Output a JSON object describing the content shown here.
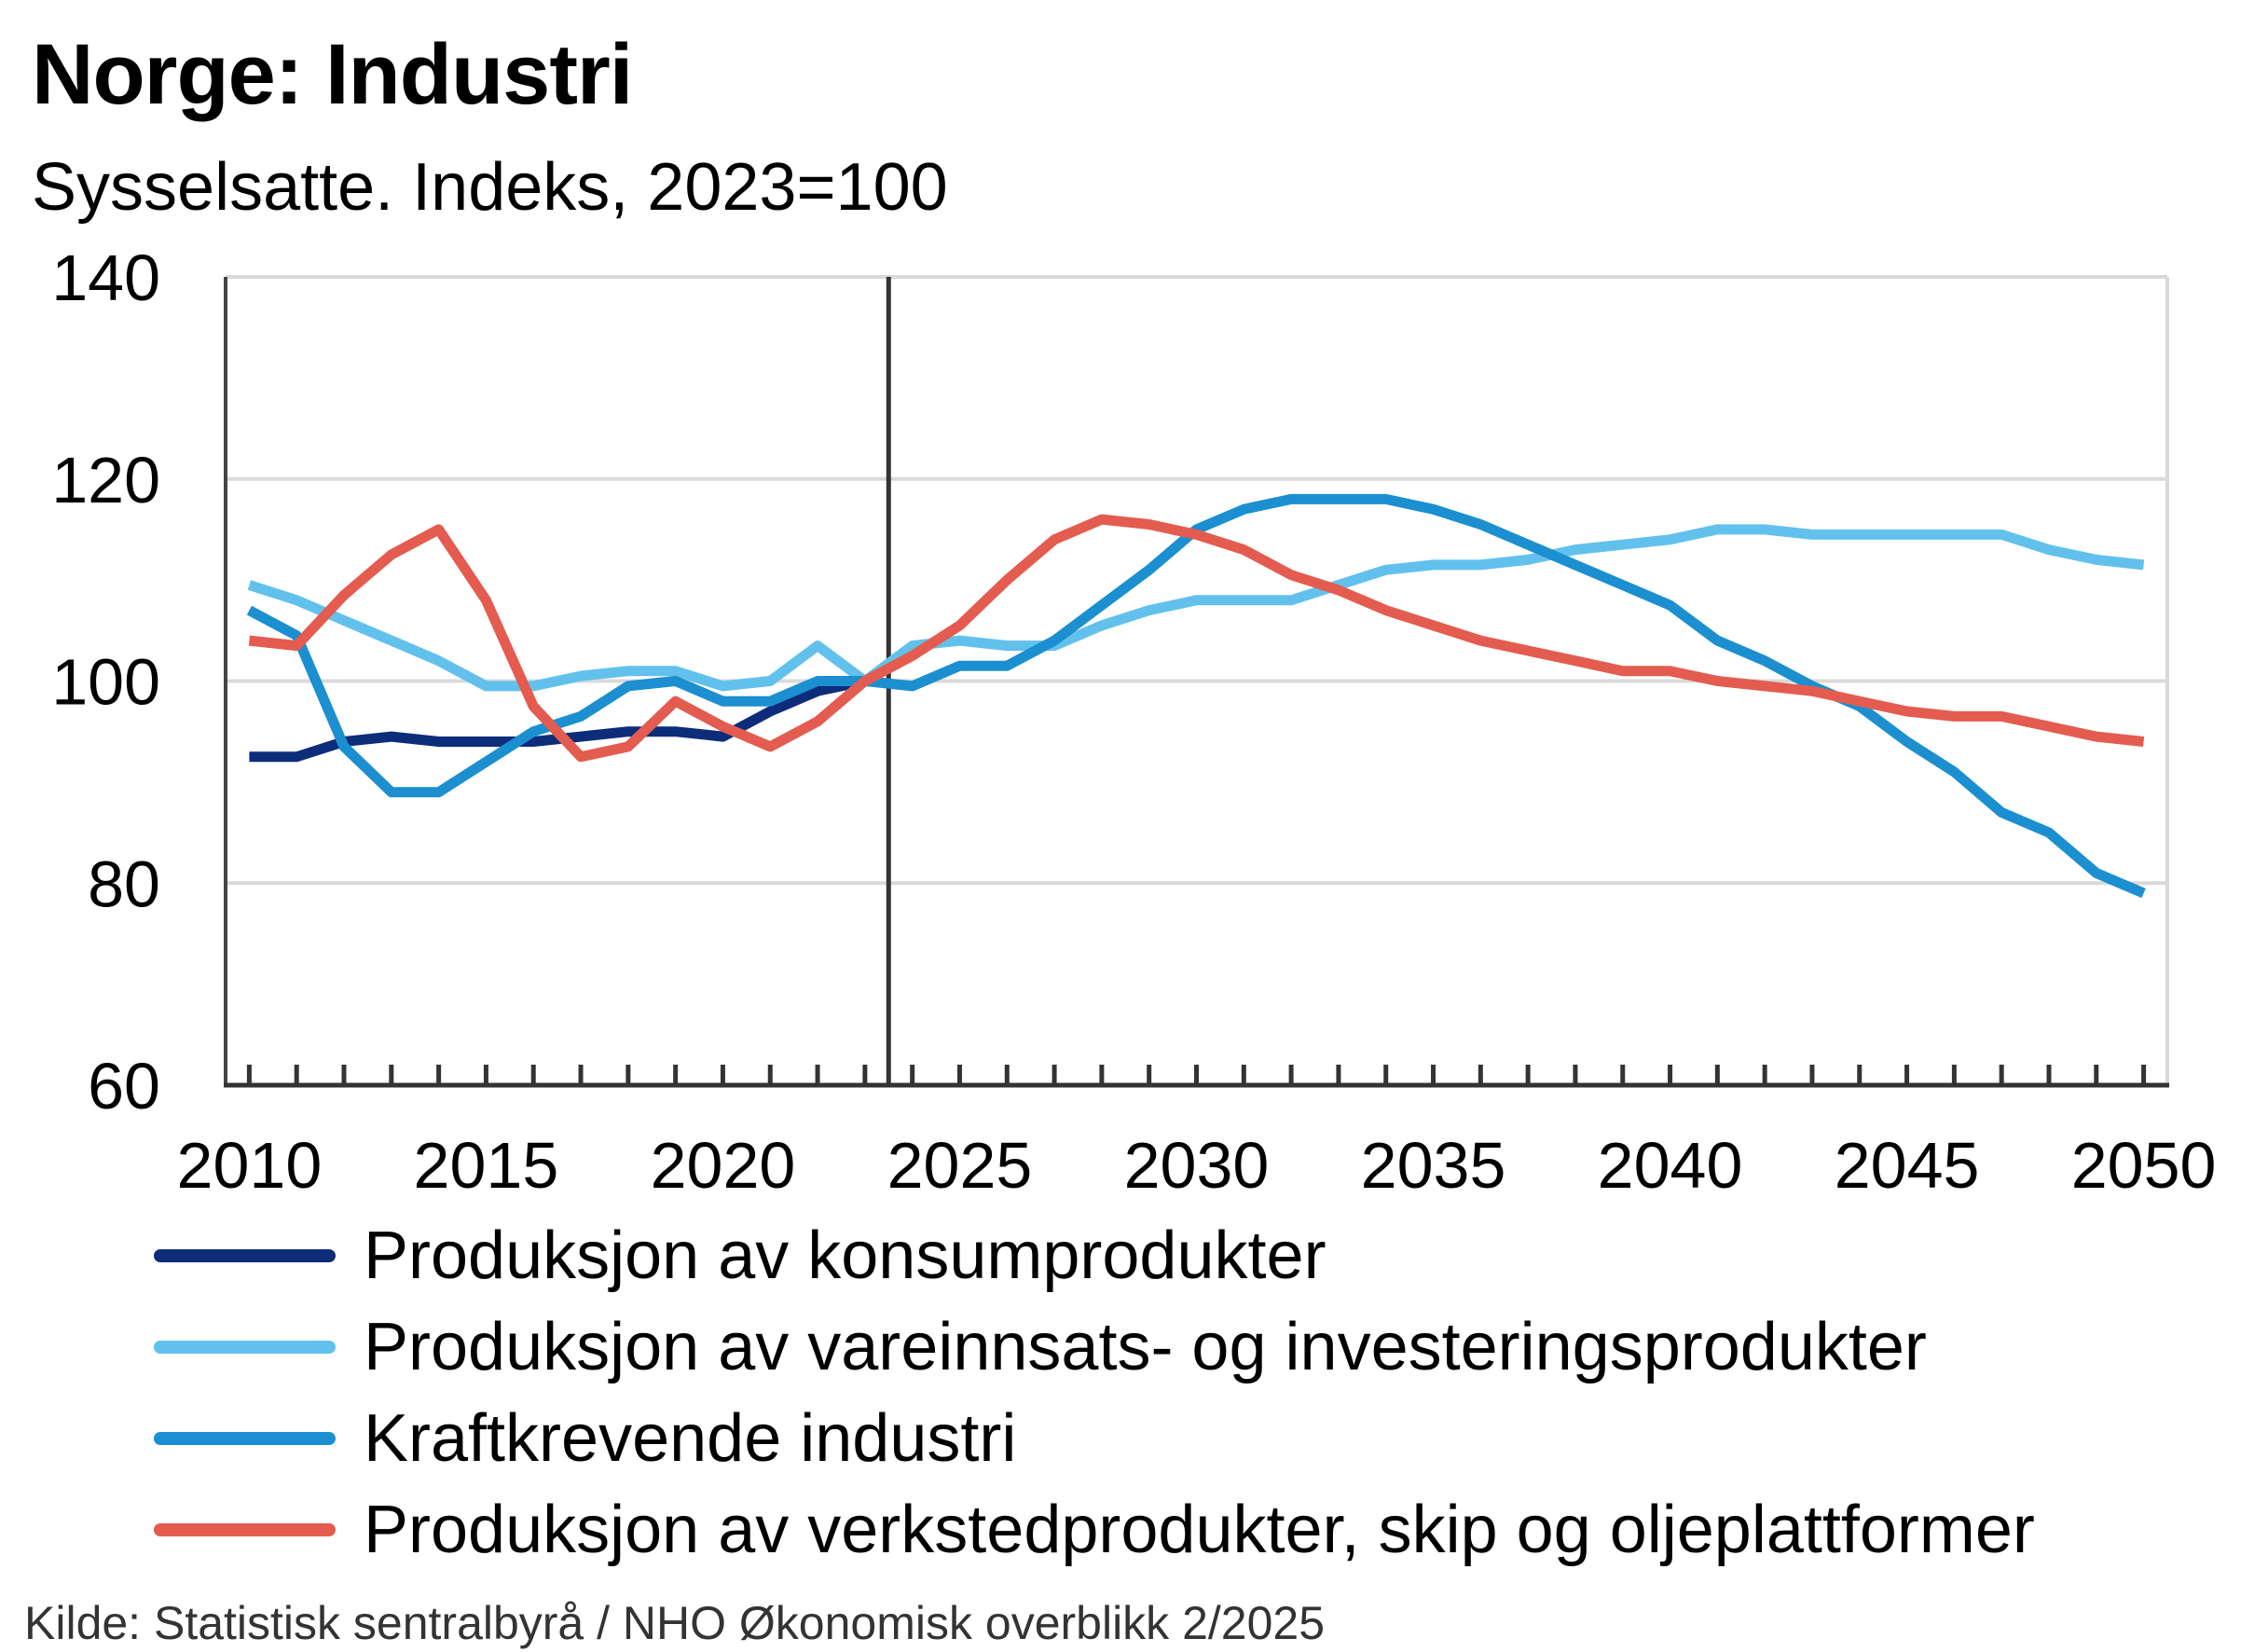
{
  "chart_data": {
    "type": "line",
    "title": "Norge:  Industri",
    "subtitle": "Sysselsatte. Indeks, 2023=100",
    "xlim": [
      2009.5,
      2050.5
    ],
    "ylim": [
      60,
      140
    ],
    "x_ticks": [
      2010,
      2015,
      2020,
      2025,
      2030,
      2035,
      2040,
      2045,
      2050
    ],
    "y_ticks": [
      60,
      80,
      100,
      120,
      140
    ],
    "grid": "horizontal",
    "vertical_marker_x": 2023.5,
    "legend_position": "bottom",
    "x": [
      2010,
      2011,
      2012,
      2013,
      2014,
      2015,
      2016,
      2017,
      2018,
      2019,
      2020,
      2021,
      2022,
      2023,
      2024,
      2025,
      2026,
      2027,
      2028,
      2029,
      2030,
      2031,
      2032,
      2033,
      2034,
      2035,
      2036,
      2037,
      2038,
      2039,
      2040,
      2041,
      2042,
      2043,
      2044,
      2045,
      2046,
      2047,
      2048,
      2049,
      2050
    ],
    "series": [
      {
        "name": "Produksjon av konsumprodukter",
        "color": "#0d2d7a",
        "values": [
          92.5,
          92.5,
          94,
          94.5,
          94,
          94,
          94,
          94.5,
          95,
          95,
          94.5,
          97,
          99,
          100,
          null,
          null,
          null,
          null,
          null,
          null,
          null,
          null,
          null,
          null,
          null,
          null,
          null,
          null,
          null,
          null,
          null,
          null,
          null,
          null,
          null,
          null,
          null,
          null,
          null,
          null,
          null
        ]
      },
      {
        "name": "Produksjon av vareinnsats- og investeringsprodukter",
        "color": "#62c1ec",
        "values": [
          109.5,
          108,
          106,
          104,
          102,
          99.5,
          99.5,
          100.5,
          101,
          101,
          99.5,
          100,
          103.5,
          100,
          103.5,
          104,
          103.5,
          103.5,
          105.5,
          107,
          108,
          108,
          108,
          109.5,
          111,
          111.5,
          111.5,
          112,
          113,
          113.5,
          114,
          115,
          115,
          114.5,
          114.5,
          114.5,
          114.5,
          114.5,
          113,
          112,
          111.5
        ]
      },
      {
        "name": "Kraftkrevende industri",
        "color": "#1b8fd0",
        "values": [
          107,
          104.5,
          93.5,
          89,
          89,
          92,
          95,
          96.5,
          99.5,
          100,
          98,
          98,
          100,
          100,
          99.5,
          101.5,
          101.5,
          104,
          107.5,
          111,
          115,
          117,
          118,
          118,
          118,
          117,
          115.5,
          113.5,
          111.5,
          109.5,
          107.5,
          104,
          102,
          99.5,
          97.5,
          94,
          91,
          87,
          85,
          81,
          79
        ]
      },
      {
        "name": "Produksjon av verkstedprodukter, skip og oljeplattformer",
        "color": "#e35c4f",
        "values": [
          104,
          103.5,
          108.5,
          112.5,
          115,
          108,
          97.5,
          92.5,
          93.5,
          98,
          95.5,
          93.5,
          96,
          100,
          102.5,
          105.5,
          110,
          114,
          116,
          115.5,
          114.5,
          113,
          110.5,
          109,
          107,
          105.5,
          104,
          103,
          102,
          101,
          101,
          100,
          99.5,
          99,
          98,
          97,
          96.5,
          96.5,
          95.5,
          94.5,
          94
        ]
      }
    ]
  },
  "source": "Kilde: Statistisk sentralbyrå / NHO Økonomisk overblikk 2/2025"
}
